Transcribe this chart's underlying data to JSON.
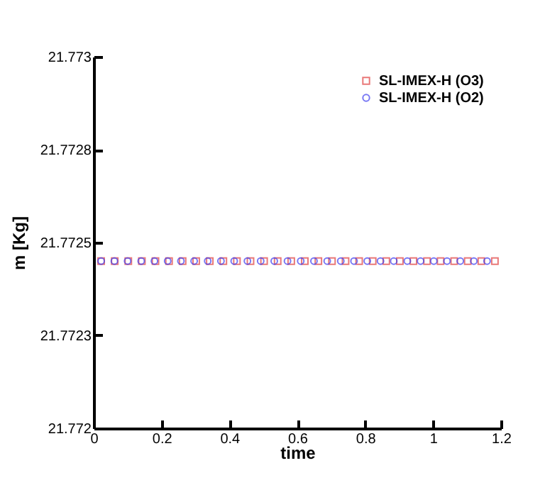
{
  "chart_data": {
    "type": "scatter",
    "xlabel": "time",
    "ylabel": "m [Kg]",
    "xlim": [
      0,
      1.2
    ],
    "xticks": [
      0,
      0.2,
      0.4,
      0.6,
      0.8,
      1,
      1.2
    ],
    "ylim": [
      21.772,
      21.773
    ],
    "yticks": [
      21.772,
      {
        "value": 21.77225,
        "label": "21.7723"
      },
      21.7725,
      {
        "value": 21.77275,
        "label": "21.7728"
      },
      21.773
    ],
    "grid": false,
    "legend": "top right",
    "series": [
      {
        "name": "SL-IMEX-H (O3)",
        "color": "#e04040",
        "marker": "square",
        "x": [
          0.022,
          0.062,
          0.102,
          0.142,
          0.182,
          0.222,
          0.262,
          0.302,
          0.342,
          0.382,
          0.422,
          0.462,
          0.502,
          0.542,
          0.582,
          0.622,
          0.662,
          0.702,
          0.742,
          0.782,
          0.822,
          0.862,
          0.902,
          0.942,
          0.982,
          1.022,
          1.062,
          1.102,
          1.142,
          1.182
        ],
        "values": [
          21.77245,
          21.77245,
          21.77245,
          21.77245,
          21.77245,
          21.77245,
          21.77245,
          21.77245,
          21.77245,
          21.77245,
          21.77245,
          21.77245,
          21.77245,
          21.77245,
          21.77245,
          21.77245,
          21.77245,
          21.77245,
          21.77245,
          21.77245,
          21.77245,
          21.77245,
          21.77245,
          21.77245,
          21.77245,
          21.77245,
          21.77245,
          21.77245,
          21.77245,
          21.77245
        ]
      },
      {
        "name": "SL-IMEX-H (O2)",
        "color": "#4040f0",
        "marker": "circle",
        "x": [
          0.022,
          0.061,
          0.1,
          0.14,
          0.179,
          0.218,
          0.257,
          0.296,
          0.336,
          0.375,
          0.414,
          0.453,
          0.492,
          0.532,
          0.571,
          0.61,
          0.649,
          0.688,
          0.728,
          0.767,
          0.806,
          0.845,
          0.884,
          0.924,
          0.963,
          1.002,
          1.041,
          1.08,
          1.12,
          1.159
        ],
        "values": [
          21.77245,
          21.77245,
          21.77245,
          21.77245,
          21.77245,
          21.77245,
          21.77245,
          21.77245,
          21.77245,
          21.77245,
          21.77245,
          21.77245,
          21.77245,
          21.77245,
          21.77245,
          21.77245,
          21.77245,
          21.77245,
          21.77245,
          21.77245,
          21.77245,
          21.77245,
          21.77245,
          21.77245,
          21.77245,
          21.77245,
          21.77245,
          21.77245,
          21.77245,
          21.77245
        ]
      }
    ]
  }
}
